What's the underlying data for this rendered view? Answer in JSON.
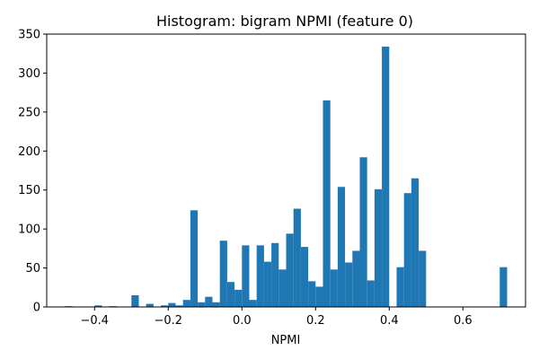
{
  "chart_data": {
    "type": "bar",
    "title": "Histogram: bigram NPMI (feature 0)",
    "xlabel": "NPMI",
    "ylabel": "",
    "xlim": [
      -0.53,
      0.77
    ],
    "ylim": [
      0,
      350
    ],
    "xticks": [
      -0.4,
      -0.2,
      0.0,
      0.2,
      0.4,
      0.6
    ],
    "xtick_labels": [
      "−0.4",
      "−0.2",
      "0.0",
      "0.2",
      "0.4",
      "0.6"
    ],
    "yticks": [
      0,
      50,
      100,
      150,
      200,
      250,
      300,
      350
    ],
    "ytick_labels": [
      "0",
      "50",
      "100",
      "150",
      "200",
      "250",
      "300",
      "350"
    ],
    "bar_color": "#1f77b4",
    "bin_width": 0.02,
    "bins": [
      {
        "x0": -0.48,
        "count": 1
      },
      {
        "x0": -0.4,
        "count": 2
      },
      {
        "x0": -0.36,
        "count": 1
      },
      {
        "x0": -0.3,
        "count": 15
      },
      {
        "x0": -0.26,
        "count": 4
      },
      {
        "x0": -0.22,
        "count": 2
      },
      {
        "x0": -0.2,
        "count": 5
      },
      {
        "x0": -0.18,
        "count": 2
      },
      {
        "x0": -0.16,
        "count": 9
      },
      {
        "x0": -0.14,
        "count": 124
      },
      {
        "x0": -0.12,
        "count": 6
      },
      {
        "x0": -0.1,
        "count": 13
      },
      {
        "x0": -0.08,
        "count": 6
      },
      {
        "x0": -0.06,
        "count": 85
      },
      {
        "x0": -0.04,
        "count": 32
      },
      {
        "x0": -0.02,
        "count": 22
      },
      {
        "x0": 0.0,
        "count": 79
      },
      {
        "x0": 0.02,
        "count": 9
      },
      {
        "x0": 0.04,
        "count": 79
      },
      {
        "x0": 0.06,
        "count": 58
      },
      {
        "x0": 0.08,
        "count": 82
      },
      {
        "x0": 0.1,
        "count": 48
      },
      {
        "x0": 0.12,
        "count": 94
      },
      {
        "x0": 0.14,
        "count": 126
      },
      {
        "x0": 0.16,
        "count": 77
      },
      {
        "x0": 0.18,
        "count": 33
      },
      {
        "x0": 0.2,
        "count": 26
      },
      {
        "x0": 0.22,
        "count": 265
      },
      {
        "x0": 0.24,
        "count": 48
      },
      {
        "x0": 0.26,
        "count": 154
      },
      {
        "x0": 0.28,
        "count": 57
      },
      {
        "x0": 0.3,
        "count": 72
      },
      {
        "x0": 0.32,
        "count": 192
      },
      {
        "x0": 0.34,
        "count": 34
      },
      {
        "x0": 0.36,
        "count": 151
      },
      {
        "x0": 0.38,
        "count": 334
      },
      {
        "x0": 0.42,
        "count": 51
      },
      {
        "x0": 0.44,
        "count": 146
      },
      {
        "x0": 0.46,
        "count": 165
      },
      {
        "x0": 0.48,
        "count": 72
      },
      {
        "x0": 0.7,
        "count": 51
      }
    ]
  }
}
